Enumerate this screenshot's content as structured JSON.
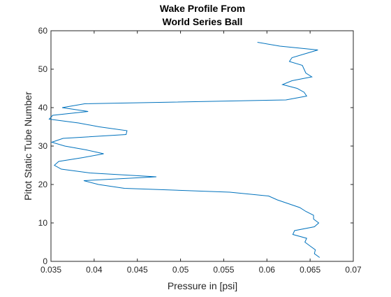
{
  "chart_data": {
    "type": "line",
    "title_lines": [
      "Wake Profile From",
      "World Series Ball"
    ],
    "xlabel": "Pressure in [psi]",
    "ylabel": "Pitot Static Tube Number",
    "xlim": [
      0.035,
      0.07
    ],
    "ylim": [
      0,
      60
    ],
    "xticks": [
      0.035,
      0.04,
      0.045,
      0.05,
      0.055,
      0.06,
      0.065,
      0.07
    ],
    "xtick_labels": [
      "0.035",
      "0.04",
      "0.045",
      "0.05",
      "0.055",
      "0.06",
      "0.065",
      "0.07"
    ],
    "yticks": [
      0,
      10,
      20,
      30,
      40,
      50,
      60
    ],
    "ytick_labels": [
      "0",
      "10",
      "20",
      "30",
      "40",
      "50",
      "60"
    ],
    "grid": false,
    "line_color": "#0072BD",
    "series": [
      {
        "x": [
          0.0661,
          0.0655,
          0.0656,
          0.065,
          0.0644,
          0.0646,
          0.063,
          0.0632,
          0.0655,
          0.066,
          0.0654,
          0.0654,
          0.0645,
          0.0638,
          0.0625,
          0.0612,
          0.0602,
          0.0557,
          0.0435,
          0.0405,
          0.0388,
          0.0472,
          0.0395,
          0.0362,
          0.0354,
          0.0359,
          0.0387,
          0.0411,
          0.0391,
          0.0366,
          0.0351,
          0.0364,
          0.0437,
          0.0438,
          0.0406,
          0.0382,
          0.0348,
          0.0352,
          0.0393,
          0.0363,
          0.0389,
          0.0622,
          0.0646,
          0.0643,
          0.0635,
          0.0618,
          0.0629,
          0.0652,
          0.0645,
          0.0643,
          0.0641,
          0.0626,
          0.0629,
          0.0644,
          0.0659,
          0.0615,
          0.0589
        ],
        "y": [
          1,
          2,
          3,
          4,
          5,
          6,
          7,
          8,
          9,
          10,
          11,
          12,
          13,
          14,
          15,
          16,
          17,
          18,
          19,
          20,
          21,
          22,
          23,
          24,
          25,
          26,
          27,
          28,
          29,
          30,
          31,
          32,
          33,
          34,
          35,
          36,
          37,
          38,
          39,
          40,
          41,
          42,
          43,
          44,
          45,
          46,
          47,
          48,
          49,
          50,
          51,
          52,
          53,
          54,
          55,
          56,
          57
        ]
      }
    ]
  }
}
